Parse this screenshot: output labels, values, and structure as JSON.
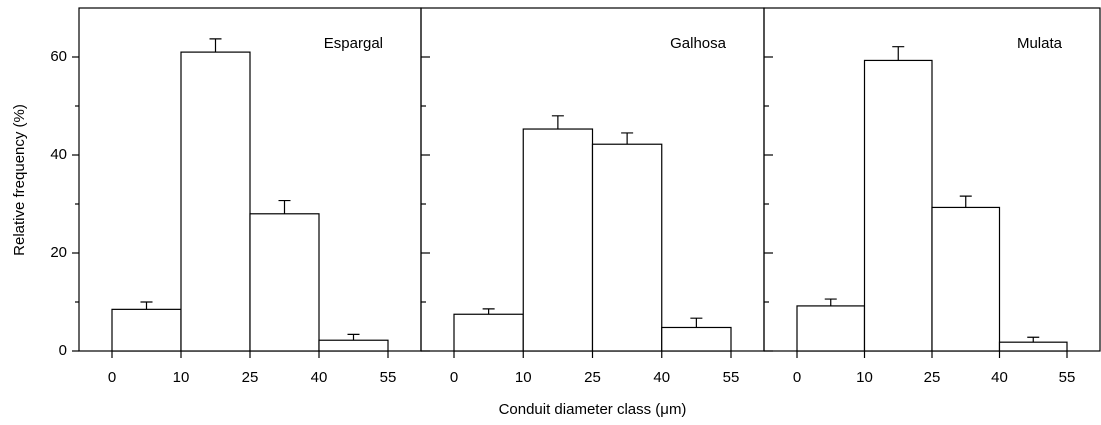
{
  "chart_data": [
    {
      "type": "histogram",
      "title": "Espargal",
      "ylabel": "Relative frequency (%)",
      "bins": [
        0,
        10,
        25,
        40,
        55
      ],
      "values": [
        8.5,
        61,
        28,
        2.2
      ],
      "errors": [
        1.5,
        2.7,
        2.7,
        1.2
      ],
      "ylim": [
        0,
        70
      ],
      "yticks": [
        0,
        20,
        40,
        60
      ],
      "yminorticks": [
        10,
        30,
        50
      ],
      "show_ytick_labels": true,
      "color": "#ffffff"
    },
    {
      "type": "histogram",
      "title": "Galhosa",
      "xlabel": "Conduit diameter class (μm)",
      "bins": [
        0,
        10,
        25,
        40,
        55
      ],
      "values": [
        7.5,
        45.3,
        42.2,
        4.8
      ],
      "errors": [
        1.1,
        2.7,
        2.3,
        1.9
      ],
      "ylim": [
        0,
        70
      ],
      "yticks": [
        0,
        20,
        40,
        60
      ],
      "yminorticks": [
        10,
        30,
        50
      ],
      "show_ytick_labels": false,
      "color": "#ffffff"
    },
    {
      "type": "histogram",
      "title": "Mulata",
      "bins": [
        0,
        10,
        25,
        40,
        55
      ],
      "values": [
        9.2,
        59.3,
        29.3,
        1.8
      ],
      "errors": [
        1.4,
        2.8,
        2.3,
        1.0
      ],
      "ylim": [
        0,
        70
      ],
      "yticks": [
        0,
        20,
        40,
        60
      ],
      "yminorticks": [
        10,
        30,
        50
      ],
      "show_ytick_labels": false,
      "color": "#ffffff"
    }
  ]
}
